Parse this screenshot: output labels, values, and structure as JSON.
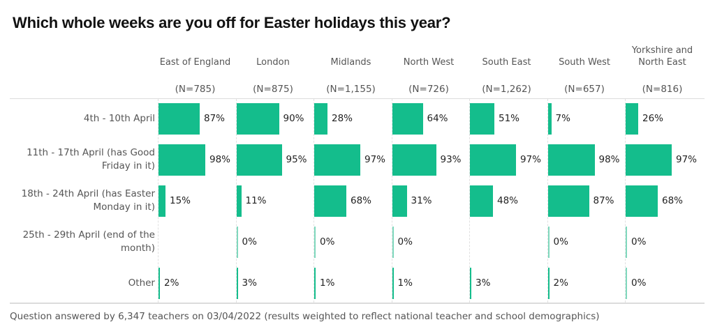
{
  "title": "Which whole weeks are you off for Easter holidays this year?",
  "footnote": "Question answered by 6,347 teachers on 03/04/2022 (results weighted to reflect national teacher and school demographics)",
  "colors": {
    "bar": "#14bd8c",
    "text": "#333333"
  },
  "chart_data": {
    "type": "bar",
    "title": "Which whole weeks are you off for Easter holidays this year?",
    "orientation": "horizontal-small-multiples",
    "xlabel": "",
    "ylabel": "",
    "xlim": [
      0,
      100
    ],
    "value_suffix": "%",
    "categories": [
      "4th - 10th April",
      "11th - 17th April (has Good Friday in it)",
      "18th - 24th April (has Easter Monday in it)",
      "25th - 29th April (end of the month)",
      "Other"
    ],
    "series": [
      {
        "name": "East of England",
        "n": "(N=785)",
        "values": [
          87,
          98,
          15,
          null,
          2
        ]
      },
      {
        "name": "London",
        "n": "(N=875)",
        "values": [
          90,
          95,
          11,
          0,
          3
        ]
      },
      {
        "name": "Midlands",
        "n": "(N=1,155)",
        "values": [
          28,
          97,
          68,
          0,
          1
        ]
      },
      {
        "name": "North West",
        "n": "(N=726)",
        "values": [
          64,
          93,
          31,
          0,
          1
        ]
      },
      {
        "name": "South East",
        "n": "(N=1,262)",
        "values": [
          51,
          97,
          48,
          null,
          3
        ]
      },
      {
        "name": "South West",
        "n": "(N=657)",
        "values": [
          7,
          98,
          87,
          0,
          2
        ]
      },
      {
        "name": "Yorkshire and North East",
        "n": "(N=816)",
        "values": [
          26,
          97,
          68,
          0,
          0
        ]
      }
    ],
    "grid": true,
    "legend": "column headers"
  },
  "columns": [
    {
      "name": "East of England",
      "n": "(N=785)"
    },
    {
      "name": "London",
      "n": "(N=875)"
    },
    {
      "name": "Midlands",
      "n": "(N=1,155)"
    },
    {
      "name": "North West",
      "n": "(N=726)"
    },
    {
      "name": "South East",
      "n": "(N=1,262)"
    },
    {
      "name": "South West",
      "n": "(N=657)"
    },
    {
      "name": "Yorkshire and North East",
      "n": "(N=816)"
    }
  ],
  "rows": [
    {
      "label": "4th - 10th April"
    },
    {
      "label": "11th - 17th April (has Good Friday in it)"
    },
    {
      "label": "18th - 24th April (has Easter Monday in it)"
    },
    {
      "label": "25th - 29th April (end of the month)"
    },
    {
      "label": "Other"
    }
  ]
}
